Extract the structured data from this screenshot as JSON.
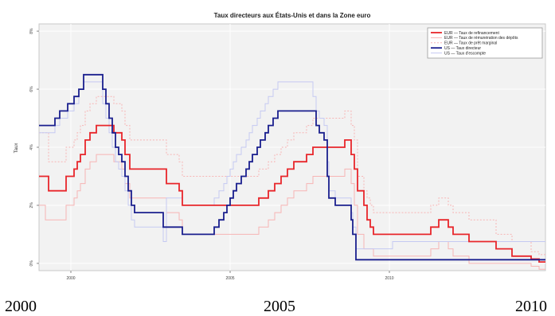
{
  "chart_data": {
    "type": "line",
    "title": "Taux directeurs aux États-Unis et dans la Zone euro",
    "ylabel": "Taux",
    "xlabel": "",
    "xlim": [
      1999.0,
      2014.9
    ],
    "ylim": [
      -0.25,
      8.25
    ],
    "x_ticks": [
      2000,
      2005,
      2010
    ],
    "x_tick_labels": [
      "2000",
      "2005",
      "2010"
    ],
    "y_ticks": [
      0,
      2,
      4,
      6,
      8
    ],
    "y_tick_labels": [
      "0%",
      "2%",
      "4%",
      "6%",
      "8%"
    ],
    "grid": true,
    "legend_position": "top-right",
    "series": [
      {
        "name": "EUR — Taux de refinancement",
        "color": "#e8262b",
        "style": "solid-thick",
        "points": [
          [
            1999.0,
            3.0
          ],
          [
            1999.3,
            2.5
          ],
          [
            1999.85,
            3.0
          ],
          [
            2000.1,
            3.25
          ],
          [
            2000.2,
            3.5
          ],
          [
            2000.3,
            3.75
          ],
          [
            2000.45,
            4.25
          ],
          [
            2000.6,
            4.5
          ],
          [
            2000.8,
            4.75
          ],
          [
            2001.35,
            4.5
          ],
          [
            2001.6,
            4.25
          ],
          [
            2001.7,
            3.75
          ],
          [
            2001.85,
            3.25
          ],
          [
            2003.0,
            2.75
          ],
          [
            2003.4,
            2.5
          ],
          [
            2003.5,
            2.0
          ],
          [
            2005.9,
            2.25
          ],
          [
            2006.2,
            2.5
          ],
          [
            2006.4,
            2.75
          ],
          [
            2006.6,
            3.0
          ],
          [
            2006.8,
            3.25
          ],
          [
            2007.0,
            3.5
          ],
          [
            2007.4,
            3.75
          ],
          [
            2007.6,
            4.0
          ],
          [
            2008.6,
            4.25
          ],
          [
            2008.8,
            3.75
          ],
          [
            2008.9,
            3.25
          ],
          [
            2009.0,
            2.5
          ],
          [
            2009.2,
            2.0
          ],
          [
            2009.3,
            1.5
          ],
          [
            2009.4,
            1.25
          ],
          [
            2009.5,
            1.0
          ],
          [
            2011.3,
            1.25
          ],
          [
            2011.55,
            1.5
          ],
          [
            2011.85,
            1.25
          ],
          [
            2012.0,
            1.0
          ],
          [
            2012.5,
            0.75
          ],
          [
            2013.35,
            0.5
          ],
          [
            2013.85,
            0.25
          ],
          [
            2014.45,
            0.15
          ],
          [
            2014.7,
            0.05
          ]
        ]
      },
      {
        "name": "EUR — Taux de rémunération des dépôts",
        "color": "#f7b4b4",
        "style": "solid-thin",
        "points": [
          [
            1999.0,
            2.0
          ],
          [
            1999.2,
            1.5
          ],
          [
            1999.85,
            2.0
          ],
          [
            2000.1,
            2.25
          ],
          [
            2000.2,
            2.5
          ],
          [
            2000.3,
            2.75
          ],
          [
            2000.45,
            3.25
          ],
          [
            2000.6,
            3.5
          ],
          [
            2000.8,
            3.75
          ],
          [
            2001.35,
            3.5
          ],
          [
            2001.6,
            3.25
          ],
          [
            2001.7,
            2.75
          ],
          [
            2001.85,
            2.25
          ],
          [
            2003.0,
            1.75
          ],
          [
            2003.4,
            1.5
          ],
          [
            2003.5,
            1.0
          ],
          [
            2005.9,
            1.25
          ],
          [
            2006.2,
            1.5
          ],
          [
            2006.4,
            1.75
          ],
          [
            2006.6,
            2.0
          ],
          [
            2006.8,
            2.25
          ],
          [
            2007.0,
            2.5
          ],
          [
            2007.4,
            2.75
          ],
          [
            2007.6,
            3.0
          ],
          [
            2008.6,
            3.25
          ],
          [
            2008.8,
            2.75
          ],
          [
            2008.9,
            2.0
          ],
          [
            2009.0,
            1.0
          ],
          [
            2009.2,
            0.5
          ],
          [
            2009.5,
            0.25
          ],
          [
            2011.3,
            0.5
          ],
          [
            2011.55,
            0.75
          ],
          [
            2011.85,
            0.5
          ],
          [
            2012.0,
            0.25
          ],
          [
            2012.5,
            0.0
          ],
          [
            2014.45,
            -0.1
          ],
          [
            2014.7,
            -0.2
          ]
        ]
      },
      {
        "name": "EUR — Taux de prêt marginal",
        "color": "#f7b4b4",
        "style": "dotted",
        "points": [
          [
            1999.0,
            4.5
          ],
          [
            1999.3,
            3.5
          ],
          [
            1999.85,
            4.0
          ],
          [
            2000.1,
            4.25
          ],
          [
            2000.2,
            4.5
          ],
          [
            2000.3,
            4.75
          ],
          [
            2000.45,
            5.25
          ],
          [
            2000.6,
            5.5
          ],
          [
            2000.8,
            5.75
          ],
          [
            2001.35,
            5.5
          ],
          [
            2001.6,
            5.25
          ],
          [
            2001.7,
            4.75
          ],
          [
            2001.85,
            4.25
          ],
          [
            2003.0,
            3.75
          ],
          [
            2003.4,
            3.5
          ],
          [
            2003.5,
            3.0
          ],
          [
            2005.9,
            3.25
          ],
          [
            2006.2,
            3.5
          ],
          [
            2006.4,
            3.75
          ],
          [
            2006.6,
            4.0
          ],
          [
            2006.8,
            4.25
          ],
          [
            2007.0,
            4.5
          ],
          [
            2007.4,
            4.75
          ],
          [
            2007.6,
            5.0
          ],
          [
            2008.6,
            5.25
          ],
          [
            2008.8,
            4.75
          ],
          [
            2008.9,
            4.25
          ],
          [
            2009.0,
            3.0
          ],
          [
            2009.2,
            2.5
          ],
          [
            2009.3,
            2.25
          ],
          [
            2009.4,
            2.0
          ],
          [
            2009.5,
            1.75
          ],
          [
            2011.3,
            2.0
          ],
          [
            2011.55,
            2.25
          ],
          [
            2011.85,
            2.0
          ],
          [
            2012.0,
            1.75
          ],
          [
            2012.5,
            1.5
          ],
          [
            2013.35,
            1.0
          ],
          [
            2013.85,
            0.75
          ],
          [
            2014.45,
            0.4
          ],
          [
            2014.7,
            0.3
          ]
        ]
      },
      {
        "name": "US — Taux directeur",
        "color": "#1a1f8e",
        "style": "solid-thick",
        "points": [
          [
            1999.0,
            4.75
          ],
          [
            1999.5,
            5.0
          ],
          [
            1999.65,
            5.25
          ],
          [
            1999.9,
            5.5
          ],
          [
            2000.1,
            5.75
          ],
          [
            2000.25,
            6.0
          ],
          [
            2000.4,
            6.5
          ],
          [
            2001.0,
            6.0
          ],
          [
            2001.1,
            5.5
          ],
          [
            2001.2,
            5.0
          ],
          [
            2001.3,
            4.5
          ],
          [
            2001.4,
            4.0
          ],
          [
            2001.5,
            3.75
          ],
          [
            2001.6,
            3.5
          ],
          [
            2001.7,
            3.0
          ],
          [
            2001.8,
            2.5
          ],
          [
            2001.9,
            2.0
          ],
          [
            2002.0,
            1.75
          ],
          [
            2002.9,
            1.25
          ],
          [
            2003.5,
            1.0
          ],
          [
            2004.5,
            1.25
          ],
          [
            2004.65,
            1.5
          ],
          [
            2004.8,
            1.75
          ],
          [
            2004.9,
            2.0
          ],
          [
            2005.0,
            2.25
          ],
          [
            2005.1,
            2.5
          ],
          [
            2005.2,
            2.75
          ],
          [
            2005.35,
            3.0
          ],
          [
            2005.5,
            3.25
          ],
          [
            2005.6,
            3.5
          ],
          [
            2005.7,
            3.75
          ],
          [
            2005.85,
            4.0
          ],
          [
            2005.95,
            4.25
          ],
          [
            2006.1,
            4.5
          ],
          [
            2006.2,
            4.75
          ],
          [
            2006.35,
            5.0
          ],
          [
            2006.5,
            5.25
          ],
          [
            2007.7,
            4.75
          ],
          [
            2007.8,
            4.5
          ],
          [
            2007.95,
            4.25
          ],
          [
            2008.05,
            3.0
          ],
          [
            2008.1,
            2.25
          ],
          [
            2008.3,
            2.0
          ],
          [
            2008.8,
            1.5
          ],
          [
            2008.85,
            1.0
          ],
          [
            2008.95,
            0.125
          ]
        ]
      },
      {
        "name": "US — Taux d'escompte",
        "color": "#c5c9f2",
        "style": "solid-thin",
        "points": [
          [
            1999.0,
            4.5
          ],
          [
            1999.5,
            4.75
          ],
          [
            1999.65,
            5.0
          ],
          [
            1999.9,
            5.25
          ],
          [
            2000.1,
            5.5
          ],
          [
            2000.25,
            6.0
          ],
          [
            2000.4,
            6.25
          ],
          [
            2001.0,
            5.5
          ],
          [
            2001.1,
            5.0
          ],
          [
            2001.2,
            4.5
          ],
          [
            2001.3,
            4.0
          ],
          [
            2001.4,
            3.5
          ],
          [
            2001.5,
            3.25
          ],
          [
            2001.6,
            3.0
          ],
          [
            2001.7,
            2.5
          ],
          [
            2001.8,
            2.0
          ],
          [
            2001.9,
            1.5
          ],
          [
            2002.0,
            1.25
          ],
          [
            2002.9,
            0.75
          ],
          [
            2003.0,
            2.25
          ],
          [
            2003.5,
            2.0
          ],
          [
            2004.5,
            2.25
          ],
          [
            2004.65,
            2.5
          ],
          [
            2004.8,
            2.75
          ],
          [
            2004.9,
            3.0
          ],
          [
            2005.0,
            3.25
          ],
          [
            2005.1,
            3.5
          ],
          [
            2005.2,
            3.75
          ],
          [
            2005.35,
            4.0
          ],
          [
            2005.5,
            4.25
          ],
          [
            2005.6,
            4.5
          ],
          [
            2005.7,
            4.75
          ],
          [
            2005.85,
            5.0
          ],
          [
            2005.95,
            5.25
          ],
          [
            2006.1,
            5.5
          ],
          [
            2006.2,
            5.75
          ],
          [
            2006.35,
            6.0
          ],
          [
            2006.5,
            6.25
          ],
          [
            2007.6,
            5.75
          ],
          [
            2007.7,
            5.25
          ],
          [
            2007.8,
            5.0
          ],
          [
            2007.95,
            4.75
          ],
          [
            2008.05,
            3.5
          ],
          [
            2008.1,
            2.5
          ],
          [
            2008.3,
            2.25
          ],
          [
            2008.8,
            1.75
          ],
          [
            2008.85,
            1.25
          ],
          [
            2008.95,
            0.5
          ],
          [
            2010.1,
            0.75
          ]
        ]
      }
    ]
  },
  "bottom_year_labels": [
    "2000",
    "2005",
    "2010"
  ]
}
